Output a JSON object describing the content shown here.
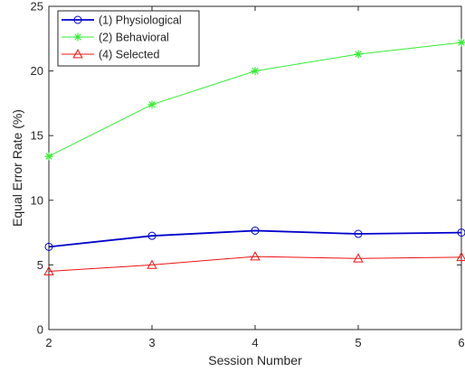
{
  "chart_data": {
    "type": "line",
    "xlabel": "Session Number",
    "ylabel": "Equal Error Rate (%)",
    "xlim": [
      2,
      6
    ],
    "ylim": [
      0,
      25
    ],
    "x_ticks": [
      2,
      3,
      4,
      5,
      6
    ],
    "y_ticks": [
      0,
      5,
      10,
      15,
      20,
      25
    ],
    "x_tick_labels": [
      "2",
      "3",
      "4",
      "5",
      "6"
    ],
    "y_tick_labels": [
      "0",
      "5",
      "10",
      "15",
      "20",
      "25"
    ],
    "grid": false,
    "legend_position": "top-left",
    "series": [
      {
        "name": "(1) Physiological",
        "color": "#0000cc",
        "marker": "circle",
        "line_width": 1.8,
        "x": [
          2,
          3,
          4,
          5,
          6
        ],
        "y": [
          6.4,
          7.25,
          7.65,
          7.4,
          7.5
        ]
      },
      {
        "name": "(2) Behavioral",
        "color": "#33ee33",
        "marker": "asterisk",
        "line_width": 1.0,
        "x": [
          2,
          3,
          4,
          5,
          6
        ],
        "y": [
          13.4,
          17.4,
          20.0,
          21.3,
          22.2
        ]
      },
      {
        "name": "(4) Selected",
        "color": "#ee1111",
        "marker": "triangle",
        "line_width": 1.0,
        "x": [
          2,
          3,
          4,
          5,
          6
        ],
        "y": [
          4.5,
          5.0,
          5.65,
          5.5,
          5.6
        ]
      }
    ]
  }
}
